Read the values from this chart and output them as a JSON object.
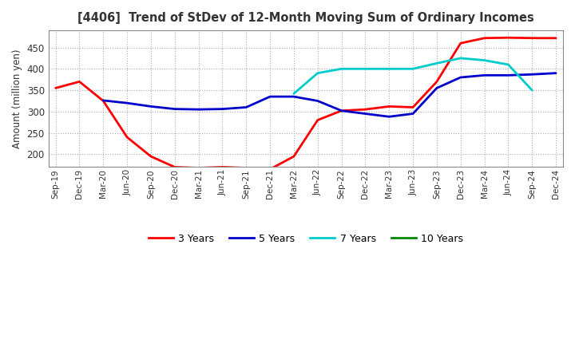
{
  "title": "[4406]  Trend of StDev of 12-Month Moving Sum of Ordinary Incomes",
  "ylabel": "Amount (million yen)",
  "background_color": "#ffffff",
  "grid_color": "#aaaaaa",
  "x_labels": [
    "Sep-19",
    "Dec-19",
    "Mar-20",
    "Jun-20",
    "Sep-20",
    "Dec-20",
    "Mar-21",
    "Jun-21",
    "Sep-21",
    "Dec-21",
    "Mar-22",
    "Jun-22",
    "Sep-22",
    "Dec-22",
    "Mar-23",
    "Jun-23",
    "Sep-23",
    "Dec-23",
    "Mar-24",
    "Jun-24",
    "Sep-24",
    "Dec-24"
  ],
  "ylim": [
    170,
    490
  ],
  "yticks": [
    200,
    250,
    300,
    350,
    400,
    450
  ],
  "title_color": "#333333",
  "series": {
    "3y": {
      "color": "#ff0000",
      "label": "3 Years",
      "values": [
        355,
        370,
        325,
        240,
        195,
        170,
        168,
        170,
        168,
        165,
        195,
        280,
        302,
        305,
        312,
        310,
        370,
        460,
        472,
        473,
        472,
        472
      ]
    },
    "5y": {
      "color": "#0000cc",
      "label": "5 Years",
      "values": [
        null,
        null,
        326,
        320,
        312,
        306,
        305,
        306,
        310,
        335,
        335,
        325,
        302,
        295,
        288,
        295,
        355,
        380,
        385,
        385,
        387,
        390
      ]
    },
    "7y": {
      "color": "#00cccc",
      "label": "7 Years",
      "values": [
        null,
        null,
        null,
        null,
        null,
        null,
        null,
        null,
        null,
        null,
        342,
        390,
        400,
        400,
        400,
        400,
        413,
        425,
        420,
        410,
        350,
        null
      ]
    },
    "10y": {
      "color": "#008800",
      "label": "10 Years",
      "values": [
        null,
        null,
        null,
        null,
        null,
        null,
        null,
        null,
        null,
        null,
        null,
        null,
        null,
        null,
        null,
        null,
        null,
        null,
        null,
        null,
        null,
        null
      ]
    }
  }
}
